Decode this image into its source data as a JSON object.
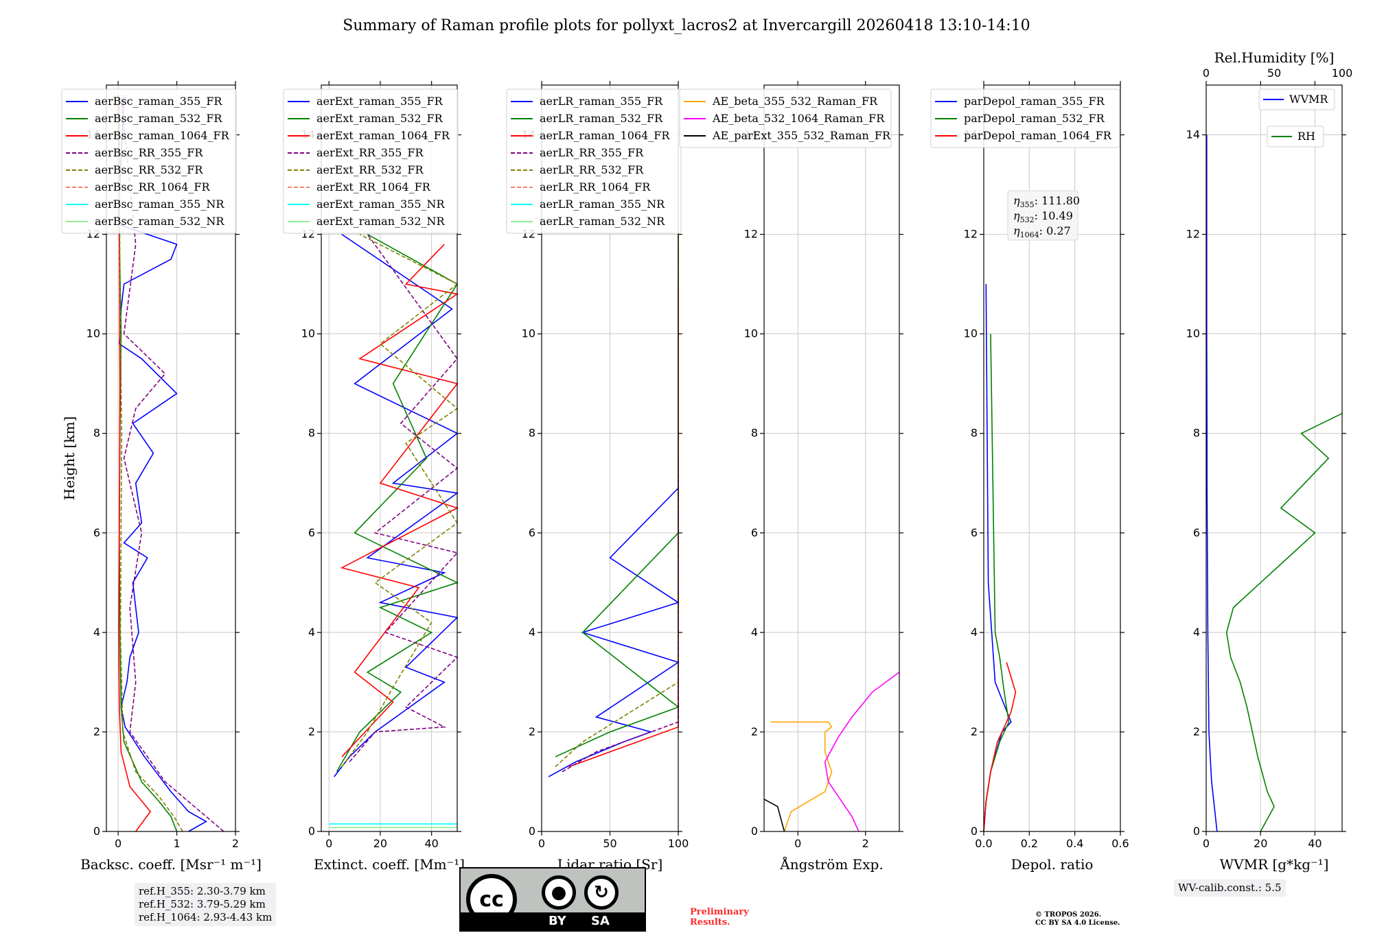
{
  "title": "Summary of Raman profile plots for pollyxt_lacros2 at Invercargill 20260418 13:10-14:10",
  "colors": {
    "blue": "#0000ff",
    "green": "#008000",
    "red": "#ff0000",
    "purple": "#800080",
    "olive": "#808000",
    "salmon": "#fa8072",
    "cyan": "#00ffff",
    "lightgreen": "#90ee90",
    "orange": "#ffa500",
    "magenta": "#ff00ff",
    "black": "#000000"
  },
  "chart_data": [
    {
      "id": "bsc",
      "type": "line",
      "xlabel": "Backsc. coeff. [Msr⁻¹ m⁻¹]",
      "ylabel": "Height [km]",
      "xlim": [
        -0.2,
        2
      ],
      "ylim": [
        0,
        15
      ],
      "xticks": [
        0,
        1,
        2
      ],
      "xtick_labels": [
        "0",
        "1",
        "2"
      ],
      "yticks": [
        0,
        2,
        4,
        6,
        8,
        10,
        12,
        14
      ],
      "ytick_labels": [
        "0",
        "2",
        "4",
        "6",
        "8",
        "10",
        "12",
        "14"
      ],
      "grid": true,
      "legend_placement": "upper-left",
      "series": [
        {
          "name": "aerBsc_raman_355_FR",
          "color": "blue",
          "dash": false,
          "x": [
            1.2,
            1.5,
            1.2,
            0.9,
            0.45,
            0.12,
            0.05,
            0.15,
            0.2,
            0.35,
            0.3,
            0.25,
            0.5,
            0.1,
            0.4,
            0.3,
            0.6,
            0.25,
            1.0,
            0.4,
            0.02,
            0.05,
            0.1,
            0.9,
            1.0,
            0.0,
            0.05,
            0.1
          ],
          "y": [
            0.0,
            0.2,
            0.4,
            0.8,
            1.5,
            2.1,
            2.5,
            3.0,
            3.5,
            4.0,
            4.5,
            5.0,
            5.5,
            5.8,
            6.2,
            7.0,
            7.6,
            8.2,
            8.8,
            9.5,
            9.8,
            10.5,
            11.0,
            11.5,
            11.8,
            12.2,
            13.5,
            14.8
          ]
        },
        {
          "name": "aerBsc_raman_532_FR",
          "color": "green",
          "dash": false,
          "x": [
            1.0,
            0.9,
            0.7,
            0.4,
            0.1,
            0.05,
            0.03,
            0.02,
            0.03,
            0.05,
            0.02,
            0.0
          ],
          "y": [
            0.0,
            0.3,
            0.6,
            1.0,
            1.8,
            2.5,
            4.0,
            6.0,
            8.0,
            10.0,
            12.0,
            14.8
          ]
        },
        {
          "name": "aerBsc_raman_1064_FR",
          "color": "red",
          "dash": false,
          "x": [
            0.3,
            0.55,
            0.2,
            0.05,
            0.02,
            0.01,
            0.02,
            0.03,
            0.02,
            0.01
          ],
          "y": [
            0.0,
            0.4,
            0.9,
            1.6,
            2.5,
            4.0,
            6.0,
            9.0,
            12.0,
            14.8
          ]
        },
        {
          "name": "aerBsc_RR_355_FR",
          "color": "purple",
          "dash": true,
          "x": [
            1.8,
            1.5,
            1.2,
            0.8,
            0.2,
            0.3,
            0.2,
            0.4,
            0.1,
            0.3,
            0.8,
            0.1,
            0.3,
            0.05
          ],
          "y": [
            0.0,
            0.3,
            0.6,
            1.0,
            2.0,
            3.0,
            4.5,
            6.0,
            7.5,
            8.5,
            9.2,
            10.0,
            11.8,
            14.8
          ]
        },
        {
          "name": "aerBsc_RR_532_FR",
          "color": "olive",
          "dash": true,
          "x": [
            1.1,
            0.95,
            0.7,
            0.3,
            0.08,
            0.04,
            0.06,
            0.03,
            0.02
          ],
          "y": [
            0.0,
            0.3,
            0.7,
            1.2,
            2.0,
            4.0,
            8.0,
            11.0,
            14.8
          ]
        },
        {
          "name": "aerBsc_RR_1064_FR",
          "color": "salmon",
          "dash": true,
          "x": [],
          "y": []
        },
        {
          "name": "aerBsc_raman_355_NR",
          "color": "cyan",
          "dash": false,
          "x": [],
          "y": []
        },
        {
          "name": "aerBsc_raman_532_NR",
          "color": "lightgreen",
          "dash": false,
          "x": [],
          "y": []
        }
      ],
      "annotations": [
        "ref.H_355: 2.30-3.79 km",
        "ref.H_532: 3.79-5.29 km",
        "ref.H_1064: 2.93-4.43 km"
      ]
    },
    {
      "id": "ext",
      "type": "line",
      "xlabel": "Extinct. coeff. [Mm⁻¹]",
      "xlim": [
        -3,
        50
      ],
      "ylim": [
        0,
        15
      ],
      "xticks": [
        0,
        20,
        40
      ],
      "xtick_labels": [
        "0",
        "20",
        "40"
      ],
      "yticks": [
        0,
        2,
        4,
        6,
        8,
        10,
        12,
        14
      ],
      "ytick_labels": [
        "0",
        "2",
        "4",
        "6",
        "8",
        "10",
        "12",
        "14"
      ],
      "grid": true,
      "legend_placement": "upper-left",
      "series": [
        {
          "name": "aerExt_raman_355_FR",
          "color": "blue",
          "dash": false,
          "x": [
            2,
            8,
            18,
            45,
            30,
            50,
            20,
            45,
            15,
            50,
            25,
            50,
            10,
            48,
            5
          ],
          "y": [
            1.1,
            1.5,
            2.0,
            3.0,
            3.3,
            4.3,
            4.6,
            5.2,
            5.5,
            6.8,
            7.0,
            8.0,
            9.0,
            10.5,
            12.0
          ]
        },
        {
          "name": "aerExt_raman_532_FR",
          "color": "green",
          "dash": false,
          "x": [
            3,
            12,
            28,
            15,
            40,
            20,
            50,
            10,
            38,
            25,
            50,
            15
          ],
          "y": [
            1.2,
            2.0,
            2.8,
            3.2,
            4.0,
            4.5,
            5.0,
            6.0,
            7.5,
            9.0,
            11.0,
            12.0
          ]
        },
        {
          "name": "aerExt_raman_1064_FR",
          "color": "red",
          "dash": false,
          "x": [
            5,
            25,
            10,
            35,
            5,
            50,
            20,
            50,
            12,
            50,
            30,
            45
          ],
          "y": [
            1.5,
            2.6,
            3.2,
            4.9,
            5.3,
            6.5,
            7.0,
            9.0,
            9.5,
            10.8,
            11.0,
            11.8
          ]
        },
        {
          "name": "aerExt_RR_355_FR",
          "color": "purple",
          "dash": true,
          "x": [
            8,
            18,
            45,
            30,
            50,
            22,
            50,
            18,
            50,
            28,
            50,
            15
          ],
          "y": [
            1.4,
            2.0,
            2.1,
            2.5,
            3.5,
            4.0,
            5.6,
            6.0,
            7.3,
            8.2,
            9.5,
            12.0
          ]
        },
        {
          "name": "aerExt_RR_532_FR",
          "color": "olive",
          "dash": true,
          "x": [
            5,
            15,
            25,
            40,
            18,
            50,
            30,
            50,
            20,
            50,
            12
          ],
          "y": [
            1.3,
            2.0,
            2.9,
            4.2,
            5.0,
            6.2,
            7.8,
            8.5,
            9.8,
            11.0,
            12.0
          ]
        },
        {
          "name": "aerExt_RR_1064_FR",
          "color": "salmon",
          "dash": true,
          "x": [],
          "y": []
        },
        {
          "name": "aerExt_raman_355_NR",
          "color": "cyan",
          "dash": false,
          "x": [
            0,
            50
          ],
          "y": [
            0.15,
            0.15
          ]
        },
        {
          "name": "aerExt_raman_532_NR",
          "color": "lightgreen",
          "dash": false,
          "x": [
            0,
            50
          ],
          "y": [
            0.08,
            0.08
          ]
        }
      ]
    },
    {
      "id": "lr",
      "type": "line",
      "xlabel": "Lidar ratio [Sr]",
      "xlim": [
        0,
        100
      ],
      "ylim": [
        0,
        15
      ],
      "xticks": [
        0,
        50,
        100
      ],
      "xtick_labels": [
        "0",
        "50",
        "100"
      ],
      "yticks": [
        0,
        2,
        4,
        6,
        8,
        10,
        12,
        14
      ],
      "ytick_labels": [
        "0",
        "2",
        "4",
        "6",
        "8",
        "10",
        "12",
        "14"
      ],
      "grid": true,
      "legend_placement": "upper-left",
      "series": [
        {
          "name": "aerLR_raman_355_FR",
          "color": "blue",
          "dash": false,
          "x": [
            5,
            25,
            60,
            80,
            40,
            100,
            30,
            100,
            50,
            100
          ],
          "y": [
            1.1,
            1.4,
            1.8,
            2.0,
            2.3,
            3.4,
            4.0,
            4.6,
            5.5,
            6.9
          ]
        },
        {
          "name": "aerLR_raman_532_FR",
          "color": "green",
          "dash": false,
          "x": [
            10,
            50,
            100,
            30,
            100,
            100
          ],
          "y": [
            1.5,
            2.0,
            2.5,
            4.0,
            6.0,
            12.0
          ]
        },
        {
          "name": "aerLR_raman_1064_FR",
          "color": "red",
          "dash": false,
          "x": [
            20,
            100,
            100,
            100,
            100,
            100
          ],
          "y": [
            1.3,
            2.1,
            4.0,
            6.5,
            9.0,
            11.0
          ]
        },
        {
          "name": "aerLR_RR_355_FR",
          "color": "purple",
          "dash": true,
          "x": [
            15,
            40,
            100,
            100,
            100
          ],
          "y": [
            1.2,
            1.6,
            2.2,
            5.8,
            7.5
          ]
        },
        {
          "name": "aerLR_RR_532_FR",
          "color": "olive",
          "dash": true,
          "x": [
            10,
            30,
            100,
            100,
            100
          ],
          "y": [
            1.3,
            1.8,
            3.0,
            8.7,
            12.0
          ]
        },
        {
          "name": "aerLR_RR_1064_FR",
          "color": "salmon",
          "dash": true,
          "x": [],
          "y": []
        },
        {
          "name": "aerLR_raman_355_NR",
          "color": "cyan",
          "dash": false,
          "x": [],
          "y": []
        },
        {
          "name": "aerLR_raman_532_NR",
          "color": "lightgreen",
          "dash": false,
          "x": [],
          "y": []
        }
      ]
    },
    {
      "id": "ae",
      "type": "line",
      "xlabel": "Ångström Exp.",
      "xlim": [
        -1,
        3
      ],
      "ylim": [
        0,
        15
      ],
      "xticks": [
        0,
        2
      ],
      "xtick_labels": [
        "0",
        "2"
      ],
      "yticks": [
        0,
        2,
        4,
        6,
        8,
        10,
        12,
        14
      ],
      "ytick_labels": [
        "0",
        "2",
        "4",
        "6",
        "8",
        "10",
        "12",
        "14"
      ],
      "grid": true,
      "legend_placement": "upper-left",
      "series": [
        {
          "name": "AE_beta_355_532_Raman_FR",
          "color": "orange",
          "dash": false,
          "x": [
            -0.4,
            -0.2,
            0.8,
            1.0,
            0.8,
            0.8,
            1.0,
            0.9,
            -0.8
          ],
          "y": [
            0.0,
            0.4,
            0.8,
            1.2,
            1.6,
            2.0,
            2.1,
            2.2,
            2.2
          ]
        },
        {
          "name": "AE_beta_532_1064_Raman_FR",
          "color": "magenta",
          "dash": false,
          "x": [
            1.8,
            1.6,
            1.2,
            0.9,
            0.8,
            1.2,
            1.6,
            2.2,
            3.0
          ],
          "y": [
            0.0,
            0.3,
            0.7,
            1.0,
            1.4,
            1.9,
            2.3,
            2.8,
            3.2
          ]
        },
        {
          "name": "AE_parExt_355_532_Raman_FR",
          "color": "black",
          "dash": false,
          "x": [
            -0.4,
            -0.6,
            -1.0
          ],
          "y": [
            0.0,
            0.5,
            0.65
          ]
        }
      ]
    },
    {
      "id": "depol",
      "type": "line",
      "xlabel": "Depol. ratio",
      "xlim": [
        0,
        0.6
      ],
      "ylim": [
        0,
        15
      ],
      "xticks": [
        0,
        0.2,
        0.4,
        0.6
      ],
      "xtick_labels": [
        "0.0",
        "0.2",
        "0.4",
        "0.6"
      ],
      "yticks": [
        0,
        2,
        4,
        6,
        8,
        10,
        12,
        14
      ],
      "ytick_labels": [
        "0",
        "2",
        "4",
        "6",
        "8",
        "10",
        "12",
        "14"
      ],
      "grid": true,
      "legend_placement": "upper-left",
      "series": [
        {
          "name": "parDepol_raman_355_FR",
          "color": "blue",
          "dash": false,
          "x": [
            0.0,
            0.01,
            0.03,
            0.08,
            0.12,
            0.05,
            0.02,
            0.01
          ],
          "y": [
            0.0,
            0.6,
            1.2,
            2.0,
            2.2,
            3.0,
            5.0,
            11.0
          ]
        },
        {
          "name": "parDepol_raman_532_FR",
          "color": "green",
          "dash": false,
          "x": [
            0.0,
            0.01,
            0.03,
            0.07,
            0.11,
            0.09,
            0.07,
            0.05,
            0.03
          ],
          "y": [
            0.0,
            0.6,
            1.2,
            1.8,
            2.2,
            2.8,
            3.5,
            4.0,
            10.0
          ]
        },
        {
          "name": "parDepol_raman_1064_FR",
          "color": "red",
          "dash": false,
          "x": [
            0.0,
            0.01,
            0.03,
            0.06,
            0.1,
            0.12,
            0.14,
            0.12,
            0.1
          ],
          "y": [
            0.0,
            0.6,
            1.2,
            1.8,
            2.2,
            2.4,
            2.8,
            3.1,
            3.4
          ]
        }
      ],
      "annotations": [
        "111.80",
        "10.49",
        "0.27"
      ]
    },
    {
      "id": "wv",
      "type": "line",
      "xlabel": "WVMR [g*kg⁻¹]",
      "x2label": "Rel.Humidity [%]",
      "xlim": [
        0,
        50
      ],
      "ylim": [
        0,
        15
      ],
      "x2lim": [
        0,
        100
      ],
      "xticks": [
        0,
        20,
        40
      ],
      "xtick_labels": [
        "0",
        "20",
        "40"
      ],
      "x2ticks": [
        0,
        50,
        100
      ],
      "x2tick_labels": [
        "0",
        "50",
        "100"
      ],
      "yticks": [
        0,
        2,
        4,
        6,
        8,
        10,
        12,
        14
      ],
      "ytick_labels": [
        "0",
        "2",
        "4",
        "6",
        "8",
        "10",
        "12",
        "14"
      ],
      "grid": true,
      "legend_placement": "upper-right",
      "series": [
        {
          "name": "WVMR",
          "color": "blue",
          "dash": false,
          "axis": "x",
          "x": [
            4,
            3,
            2,
            1.5,
            1.0,
            0.8,
            0.6,
            0.5,
            0.4,
            0.3,
            0.3,
            0.2,
            0.2
          ],
          "y": [
            0.0,
            0.5,
            1.0,
            1.5,
            2.0,
            3.0,
            4.0,
            5.0,
            6.0,
            7.0,
            8.0,
            10.0,
            14.0
          ]
        },
        {
          "name": "RH",
          "color": "green",
          "dash": false,
          "axis": "x2",
          "x": [
            40,
            50,
            45,
            38,
            30,
            25,
            18,
            15,
            20,
            40,
            60,
            80,
            55,
            90,
            70,
            100
          ],
          "y": [
            0.0,
            0.5,
            0.8,
            1.5,
            2.5,
            3.0,
            3.5,
            4.0,
            4.5,
            5.0,
            5.5,
            6.0,
            6.5,
            7.5,
            8.0,
            8.4
          ]
        }
      ],
      "annotations": [
        "WV-calib.const.: 5.5"
      ]
    }
  ],
  "footer": {
    "license_by": "BY",
    "license_sa": "SA",
    "preliminary_line1": "Preliminary",
    "preliminary_line2": "Results.",
    "copyright_line1": "© TROPOS 2026.",
    "copyright_line2": "CC BY SA 4.0 License."
  }
}
